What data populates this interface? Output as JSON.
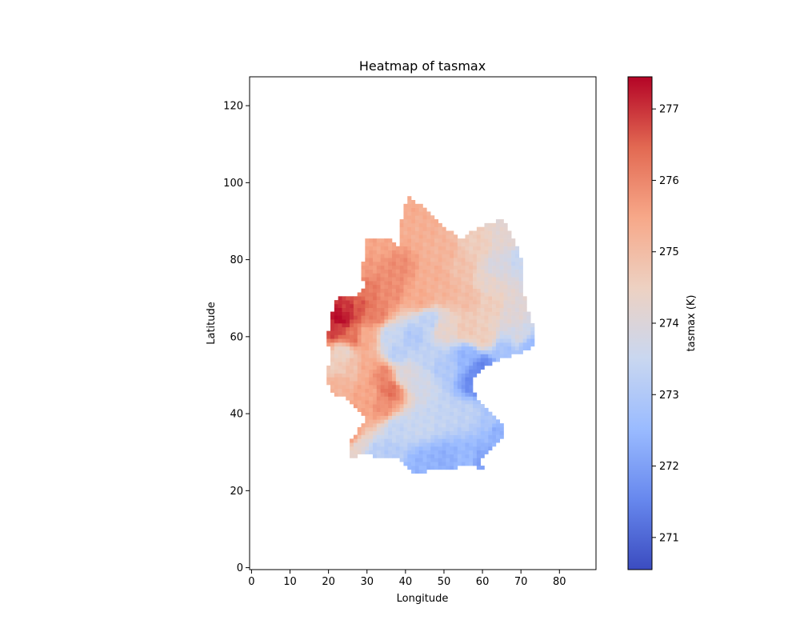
{
  "chart_data": {
    "type": "heatmap",
    "title": "Heatmap of tasmax",
    "xlabel": "Longitude",
    "ylabel": "Latitude",
    "xlim": [
      -0.5,
      89.5
    ],
    "ylim": [
      -0.5,
      127.5
    ],
    "x_ticks": [
      "0",
      "10",
      "20",
      "30",
      "40",
      "50",
      "60",
      "70",
      "80"
    ],
    "y_ticks": [
      "0",
      "20",
      "40",
      "60",
      "80",
      "100",
      "120"
    ],
    "grid": false,
    "colormap": "coolwarm",
    "colorbar": {
      "label": "tasmax (K)",
      "vmin": 270.55,
      "vmax": 277.45,
      "ticks": [
        "271",
        "272",
        "273",
        "274",
        "275",
        "276",
        "277"
      ],
      "colors": [
        "#3b4cc0",
        "#6788ee",
        "#9abbff",
        "#c9d7f0",
        "#edd1c2",
        "#f7a889",
        "#e26952",
        "#b40426"
      ]
    },
    "region_outline_lonlat": [
      [
        41,
        97
      ],
      [
        46,
        94
      ],
      [
        49,
        90
      ],
      [
        52,
        88
      ],
      [
        55,
        86
      ],
      [
        58,
        88
      ],
      [
        62,
        90
      ],
      [
        66,
        91
      ],
      [
        67,
        89
      ],
      [
        69,
        85
      ],
      [
        71,
        80
      ],
      [
        71,
        74
      ],
      [
        72,
        68
      ],
      [
        74,
        63
      ],
      [
        74,
        58
      ],
      [
        70,
        56
      ],
      [
        66,
        55
      ],
      [
        62,
        53
      ],
      [
        59,
        51
      ],
      [
        58,
        48
      ],
      [
        59,
        45
      ],
      [
        61,
        42
      ],
      [
        64,
        40
      ],
      [
        66,
        38
      ],
      [
        66,
        34
      ],
      [
        62,
        31
      ],
      [
        60,
        28
      ],
      [
        61,
        26
      ],
      [
        57,
        27
      ],
      [
        52,
        26
      ],
      [
        48,
        26
      ],
      [
        44,
        25
      ],
      [
        42,
        25
      ],
      [
        41,
        27
      ],
      [
        38,
        29
      ],
      [
        34,
        29
      ],
      [
        30,
        30
      ],
      [
        26,
        29
      ],
      [
        26,
        33
      ],
      [
        28,
        36
      ],
      [
        30,
        39
      ],
      [
        26,
        44
      ],
      [
        21,
        46
      ],
      [
        20,
        50
      ],
      [
        21,
        56
      ],
      [
        20,
        60
      ],
      [
        21,
        64
      ],
      [
        22,
        69
      ],
      [
        24,
        71
      ],
      [
        27,
        71
      ],
      [
        30,
        73
      ],
      [
        29,
        78
      ],
      [
        30,
        82
      ],
      [
        30,
        86
      ],
      [
        36,
        86
      ],
      [
        39,
        84
      ],
      [
        39,
        88
      ],
      [
        40,
        93
      ]
    ],
    "anchors": [
      {
        "lon": 23,
        "lat": 65,
        "value": 277.4
      },
      {
        "lon": 25,
        "lat": 67,
        "value": 277.0
      },
      {
        "lon": 22,
        "lat": 62,
        "value": 276.9
      },
      {
        "lon": 28,
        "lat": 68,
        "value": 276.6
      },
      {
        "lon": 30,
        "lat": 72,
        "value": 276.2
      },
      {
        "lon": 29,
        "lat": 78,
        "value": 275.7
      },
      {
        "lon": 33,
        "lat": 84,
        "value": 275.5
      },
      {
        "lon": 40,
        "lat": 94,
        "value": 275.4
      },
      {
        "lon": 44,
        "lat": 88,
        "value": 275.3
      },
      {
        "lon": 38,
        "lat": 78,
        "value": 275.9
      },
      {
        "lon": 36,
        "lat": 72,
        "value": 275.9
      },
      {
        "lon": 32,
        "lat": 66,
        "value": 276.1
      },
      {
        "lon": 30,
        "lat": 60,
        "value": 275.4
      },
      {
        "lon": 26,
        "lat": 60,
        "value": 276.3
      },
      {
        "lon": 24,
        "lat": 56,
        "value": 274.4
      },
      {
        "lon": 22,
        "lat": 52,
        "value": 274.6
      },
      {
        "lon": 22,
        "lat": 48,
        "value": 275.2
      },
      {
        "lon": 26,
        "lat": 52,
        "value": 274.9
      },
      {
        "lon": 30,
        "lat": 52,
        "value": 275.4
      },
      {
        "lon": 34,
        "lat": 50,
        "value": 276.0
      },
      {
        "lon": 36,
        "lat": 46,
        "value": 276.3
      },
      {
        "lon": 34,
        "lat": 42,
        "value": 275.8
      },
      {
        "lon": 30,
        "lat": 45,
        "value": 275.5
      },
      {
        "lon": 28,
        "lat": 40,
        "value": 275.5
      },
      {
        "lon": 26,
        "lat": 34,
        "value": 275.7
      },
      {
        "lon": 28,
        "lat": 32,
        "value": 274.2
      },
      {
        "lon": 32,
        "lat": 30,
        "value": 273.2
      },
      {
        "lon": 36,
        "lat": 30,
        "value": 273.1
      },
      {
        "lon": 44,
        "lat": 27,
        "value": 272.4
      },
      {
        "lon": 50,
        "lat": 28,
        "value": 272.3
      },
      {
        "lon": 56,
        "lat": 28,
        "value": 272.5
      },
      {
        "lon": 60,
        "lat": 27,
        "value": 272.0
      },
      {
        "lon": 38,
        "lat": 36,
        "value": 273.4
      },
      {
        "lon": 44,
        "lat": 38,
        "value": 273.5
      },
      {
        "lon": 50,
        "lat": 40,
        "value": 273.4
      },
      {
        "lon": 56,
        "lat": 40,
        "value": 273.3
      },
      {
        "lon": 62,
        "lat": 38,
        "value": 272.9
      },
      {
        "lon": 64,
        "lat": 36,
        "value": 272.3
      },
      {
        "lon": 58,
        "lat": 48,
        "value": 271.6
      },
      {
        "lon": 60,
        "lat": 52,
        "value": 271.5
      },
      {
        "lon": 56,
        "lat": 55,
        "value": 272.4
      },
      {
        "lon": 50,
        "lat": 52,
        "value": 273.0
      },
      {
        "lon": 46,
        "lat": 55,
        "value": 273.3
      },
      {
        "lon": 44,
        "lat": 48,
        "value": 273.7
      },
      {
        "lon": 40,
        "lat": 50,
        "value": 274.0
      },
      {
        "lon": 38,
        "lat": 56,
        "value": 273.2
      },
      {
        "lon": 42,
        "lat": 60,
        "value": 273.0
      },
      {
        "lon": 36,
        "lat": 60,
        "value": 273.5
      },
      {
        "lon": 46,
        "lat": 64,
        "value": 273.3
      },
      {
        "lon": 50,
        "lat": 62,
        "value": 274.3
      },
      {
        "lon": 44,
        "lat": 70,
        "value": 275.4
      },
      {
        "lon": 50,
        "lat": 72,
        "value": 275.2
      },
      {
        "lon": 56,
        "lat": 70,
        "value": 275.0
      },
      {
        "lon": 62,
        "lat": 68,
        "value": 274.6
      },
      {
        "lon": 68,
        "lat": 66,
        "value": 274.1
      },
      {
        "lon": 70,
        "lat": 60,
        "value": 273.8
      },
      {
        "lon": 72,
        "lat": 58,
        "value": 272.6
      },
      {
        "lon": 66,
        "lat": 56,
        "value": 272.8
      },
      {
        "lon": 60,
        "lat": 60,
        "value": 274.6
      },
      {
        "lon": 56,
        "lat": 62,
        "value": 274.7
      },
      {
        "lon": 64,
        "lat": 78,
        "value": 273.9
      },
      {
        "lon": 70,
        "lat": 80,
        "value": 273.5
      },
      {
        "lon": 66,
        "lat": 86,
        "value": 274.2
      },
      {
        "lon": 58,
        "lat": 84,
        "value": 274.6
      },
      {
        "lon": 50,
        "lat": 82,
        "value": 275.2
      },
      {
        "lon": 48,
        "lat": 76,
        "value": 275.3
      },
      {
        "lon": 62,
        "lat": 74,
        "value": 274.3
      },
      {
        "lon": 54,
        "lat": 78,
        "value": 274.9
      }
    ]
  }
}
